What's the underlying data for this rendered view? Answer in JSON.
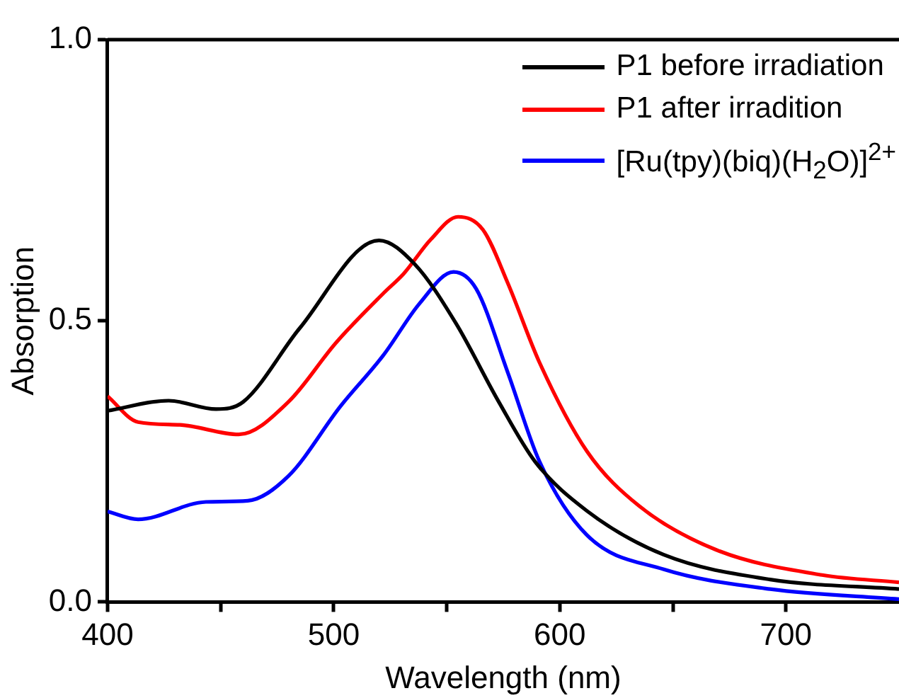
{
  "chart_data": {
    "type": "line",
    "xlabel": "Wavelength (nm)",
    "ylabel": "Absorption",
    "xlim": [
      400,
      750
    ],
    "ylim": [
      0,
      1
    ],
    "xticks": [
      400,
      {
        "value": 450,
        "label": null
      },
      500,
      {
        "value": 550,
        "label": null
      },
      600,
      {
        "value": 650,
        "label": null
      },
      700
    ],
    "yticks": [
      {
        "value": 0,
        "label": "0.0"
      },
      {
        "value": 0.5,
        "label": "0.5"
      },
      {
        "value": 1,
        "label": "1.0"
      }
    ],
    "legend": "top right",
    "grid": false,
    "marker": "none",
    "line_style": "solid",
    "series": [
      {
        "name": "P1 before irradiation",
        "color": "#000000",
        "x": [
          400,
          427,
          448,
          460,
          485,
          520,
          536,
          554,
          573,
          589,
          612,
          646,
          693,
          750
        ],
        "values": [
          0.34,
          0.358,
          0.343,
          0.356,
          0.487,
          0.643,
          0.6,
          0.496,
          0.356,
          0.25,
          0.162,
          0.084,
          0.04,
          0.023
        ]
      },
      {
        "name": "P1 after irradition",
        "color": "#ff0000",
        "x": [
          400,
          413.5,
          432,
          458,
          480,
          501,
          522,
          531,
          543,
          555,
          566,
          577,
          591,
          612,
          635,
          669,
          716,
          750
        ],
        "values": [
          0.366,
          0.32,
          0.315,
          0.298,
          0.356,
          0.461,
          0.549,
          0.584,
          0.645,
          0.685,
          0.662,
          0.567,
          0.426,
          0.268,
          0.171,
          0.093,
          0.048,
          0.035
        ]
      },
      {
        "name": "[Ru(tpy)(biq)(H$_{2}$O)]$^{2+}$",
        "color": "#0000ff",
        "x": [
          400,
          413.5,
          443.5,
          462,
          480,
          503,
          522,
          538,
          553,
          563,
          577,
          591,
          612,
          646,
          693,
          750
        ],
        "values": [
          0.161,
          0.147,
          0.178,
          0.18,
          0.224,
          0.348,
          0.439,
          0.531,
          0.587,
          0.557,
          0.408,
          0.25,
          0.119,
          0.058,
          0.023,
          0.005
        ]
      }
    ]
  }
}
